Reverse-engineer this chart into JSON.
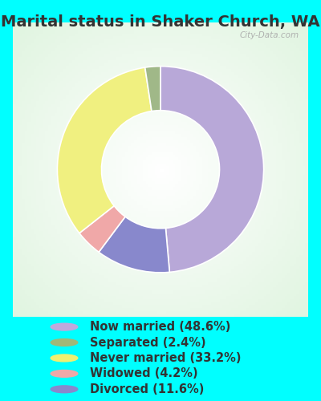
{
  "title": "Marital status in Shaker Church, WA",
  "slices": [
    48.6,
    11.6,
    4.2,
    33.2,
    2.4
  ],
  "colors_pie": [
    "#b8a8d8",
    "#8888cc",
    "#f0a8a8",
    "#f0f080",
    "#a0b888"
  ],
  "labels": [
    "Now married (48.6%)",
    "Separated (2.4%)",
    "Never married (33.2%)",
    "Widowed (4.2%)",
    "Divorced (11.6%)"
  ],
  "legend_colors": [
    "#c0a8dc",
    "#a0b878",
    "#f0f070",
    "#f0a8a8",
    "#8888cc"
  ],
  "background_outer": "#00ffff",
  "title_fontsize": 14,
  "legend_fontsize": 10.5,
  "watermark": "City-Data.com",
  "start_angle": 90
}
